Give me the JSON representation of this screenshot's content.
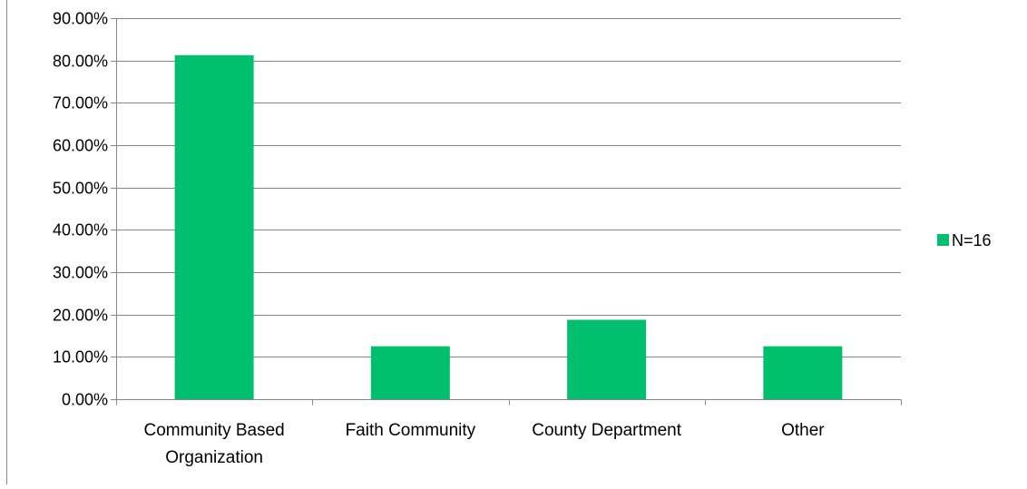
{
  "chart_data": {
    "type": "bar",
    "categories": [
      [
        "Community Based",
        "Organization"
      ],
      [
        "Faith Community"
      ],
      [
        "County Department"
      ],
      [
        "Other"
      ]
    ],
    "series": [
      {
        "name": "N=16",
        "color": "#00c06f",
        "values": [
          81.25,
          12.5,
          18.75,
          12.5
        ]
      }
    ],
    "yaxis": {
      "min": 0,
      "max": 90,
      "step": 10,
      "tick_format": "0.00%"
    },
    "grid": "horizontal",
    "legend_position": "right"
  }
}
